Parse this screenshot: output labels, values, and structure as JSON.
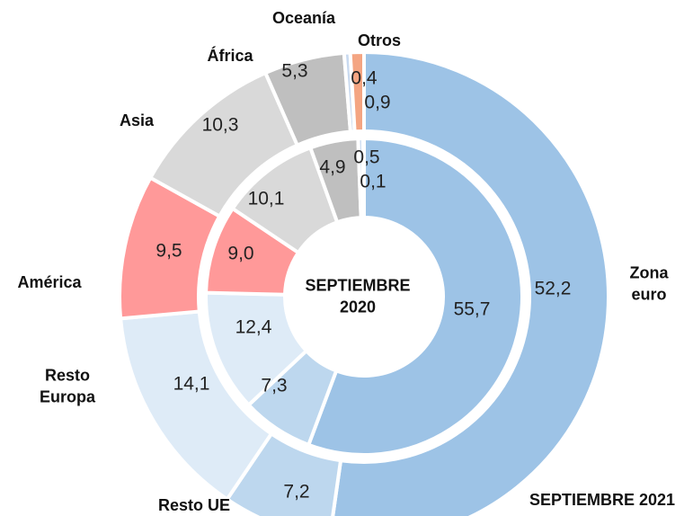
{
  "chart_data": {
    "type": "donut",
    "categories": [
      "Zona euro",
      "Resto UE",
      "Resto Europa",
      "América",
      "Asia",
      "África",
      "Oceanía",
      "Otros"
    ],
    "colors": [
      "#9dc3e6",
      "#bdd7ee",
      "#deebf7",
      "#ff9999",
      "#d9d9d9",
      "#bfbfbf",
      "#c9daf0",
      "#f4a582"
    ],
    "series": [
      {
        "name": "SEPTIEMBRE 2020",
        "ring": "inner",
        "values": [
          55.7,
          7.3,
          12.4,
          9.0,
          10.1,
          4.9,
          0.5,
          0.1
        ],
        "value_labels": [
          "55,7",
          "7,3",
          "12,4",
          "9,0",
          "10,1",
          "4,9",
          "0,5",
          "0,1"
        ]
      },
      {
        "name": "SEPTIEMBRE 2021",
        "ring": "outer",
        "values": [
          52.2,
          7.2,
          14.1,
          9.5,
          10.3,
          5.3,
          0.4,
          0.9
        ],
        "value_labels": [
          "52,2",
          "7,2",
          "14,1",
          "9,5",
          "10,3",
          "5,3",
          "0,4",
          "0,9"
        ]
      }
    ]
  }
}
